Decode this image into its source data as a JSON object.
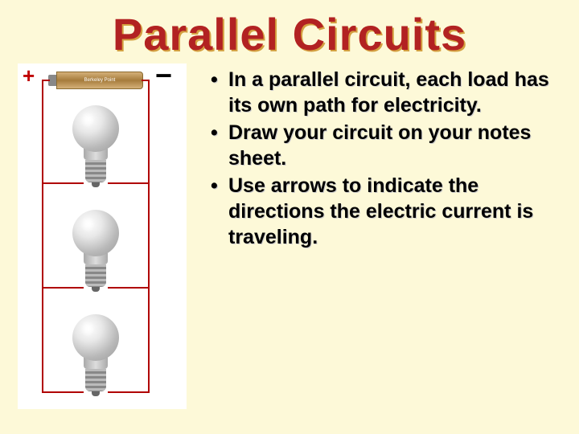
{
  "title": "Parallel Circuits",
  "battery": {
    "plus_symbol": "+",
    "minus_symbol": "−",
    "label": "Berkeley Point"
  },
  "diagram": {
    "background_color": "#ffffff",
    "wire_color": "#b00000",
    "bulb_count": 3,
    "plus_color": "#c00000",
    "minus_color": "#000000"
  },
  "bullets": [
    "In a parallel circuit, each load has its own path for electricity.",
    "Draw your circuit on your notes sheet.",
    "Use arrows to indicate the directions the electric current is traveling."
  ],
  "colors": {
    "page_background": "#fdf9d8",
    "title_color": "#b22222",
    "title_shadow": "#d4a040",
    "text_color": "#000000"
  },
  "typography": {
    "title_fontsize": 56,
    "bullet_fontsize": 25,
    "font_family": "Comic Sans MS"
  }
}
